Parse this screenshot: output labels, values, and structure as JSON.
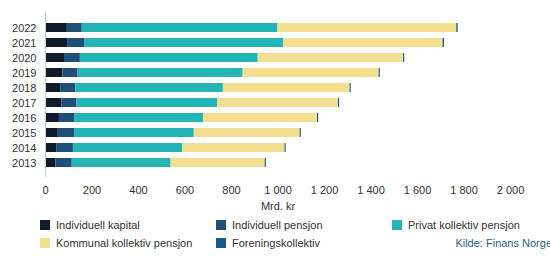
{
  "chart_data": {
    "type": "bar",
    "orientation": "horizontal",
    "stacked": true,
    "grid": false,
    "legend": "bottom",
    "caption": "Kilde: Finans Norge",
    "x_label": "Mrd. kr",
    "categories": [
      "2022",
      "2021",
      "2020",
      "2019",
      "2018",
      "2017",
      "2016",
      "2015",
      "2014",
      "2013"
    ],
    "series": [
      {
        "name": "Individuell kapital",
        "color": "#0d1b2a",
        "values": [
          94,
          95,
          85,
          75,
          65,
          70,
          60,
          55,
          50,
          45
        ]
      },
      {
        "name": "Individuell pensjon",
        "color": "#1f4e79",
        "values": [
          64,
          75,
          65,
          65,
          65,
          65,
          65,
          70,
          70,
          70
        ]
      },
      {
        "name": "Privat kollektiv pensjon",
        "color": "#23b5b5",
        "values": [
          842,
          855,
          765,
          710,
          635,
          605,
          555,
          515,
          470,
          425
        ]
      },
      {
        "name": "Kommunal kollektiv pensjon",
        "color": "#f3df8f",
        "values": [
          769,
          685,
          625,
          585,
          545,
          520,
          490,
          455,
          440,
          405
        ]
      },
      {
        "name": "Foreningskollektiv",
        "color": "#1b5a8a",
        "values": [
          6,
          6,
          5,
          5,
          5,
          5,
          5,
          5,
          5,
          5
        ]
      }
    ],
    "xlim": [
      0,
      2000
    ],
    "xticks": [
      0,
      200,
      400,
      600,
      800,
      {
        "value": 1000,
        "label": "1 000"
      },
      {
        "value": 1200,
        "label": "1 200"
      },
      {
        "value": 1400,
        "label": "1 400"
      },
      {
        "value": 1600,
        "label": "1 600"
      },
      {
        "value": 1800,
        "label": "1 800"
      },
      {
        "value": 2000,
        "label": "2 000"
      }
    ]
  }
}
